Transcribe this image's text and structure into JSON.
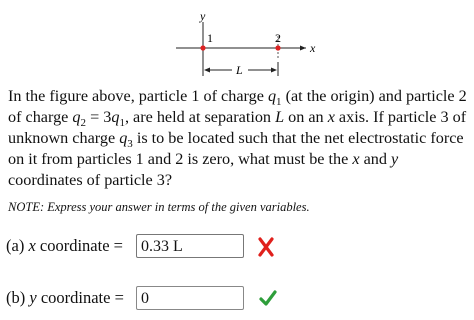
{
  "figure": {
    "y_label": "y",
    "x_label": "x",
    "p1_label": "1",
    "p2_label": "2",
    "sep_label": "L"
  },
  "question": [
    "In the figure above, particle 1 of charge ",
    "q",
    "1",
    " (at the origin) and particle 2 of charge ",
    "q",
    "2",
    " = 3",
    "q",
    "1",
    ", are held at separation ",
    "L",
    " on an ",
    "x",
    " axis. If particle 3 of unknown charge ",
    "q",
    "3",
    " is to be located such that the net electrostatic force on it from particles 1 and 2 is zero, what must be the ",
    "x",
    " and ",
    "y",
    " coordinates of particle 3?"
  ],
  "note": "NOTE: Express your answer in terms of the given variables.",
  "answers": [
    {
      "prefix": "(a) ",
      "var": "x",
      "label": " coordinate =",
      "value": "0.33 L"
    },
    {
      "prefix": "(b) ",
      "var": "y",
      "label": " coordinate =",
      "value": "0"
    }
  ]
}
